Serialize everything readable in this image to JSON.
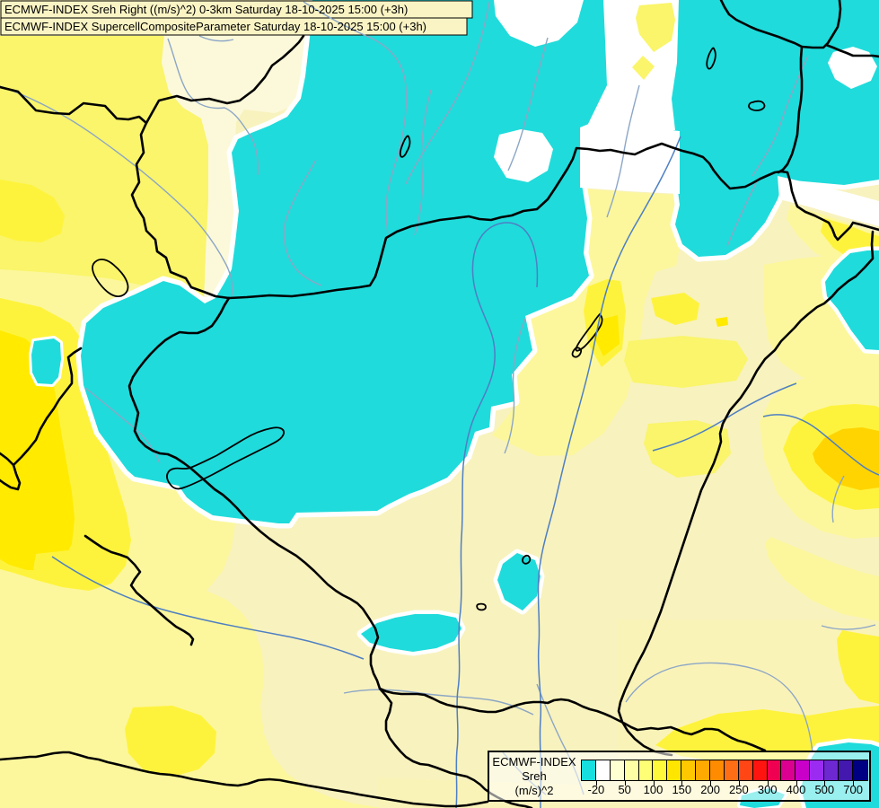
{
  "titles": {
    "line1": "ECMWF-INDEX Sreh Right ((m/s)^2) 0-3km Saturday 18-10-2025 15:00 (+3h)",
    "line2": "ECMWF-INDEX SupercellCompositeParameter Saturday 18-10-2025 15:00 (+3h)"
  },
  "legend": {
    "product": "ECMWF-INDEX",
    "parameter": "Sreh",
    "units": "(m/s)^2",
    "tick_labels": [
      "-20",
      "50",
      "100",
      "150",
      "200",
      "250",
      "300",
      "400",
      "500",
      "700"
    ],
    "colors": [
      "#17DFDF",
      "#FFFFFF",
      "#FFFFD2",
      "#FFFFA6",
      "#FFFF76",
      "#FFF93C",
      "#FFE600",
      "#FFC800",
      "#FFAA00",
      "#FF8C00",
      "#FF6E14",
      "#FF4614",
      "#FF1410",
      "#F00050",
      "#DC0091",
      "#C800C8",
      "#9B2BF0",
      "#6E28D2",
      "#4318AE",
      "#000082"
    ]
  },
  "palette": {
    "cream": "#F8F2BE",
    "ivory": "#FCF9DA",
    "pale": "#FCF79C",
    "palelt": "#FAF3B8",
    "tlyellow": "#FAF56A",
    "yellow": "#FEF33C",
    "bright": "#FFEA00",
    "golden": "#FFD400",
    "cyan": "#20DBDB",
    "white": "#FFFFFF",
    "riverb": "#4E7FC4",
    "riverg": "#8CA6C6",
    "ink": "#000000"
  }
}
